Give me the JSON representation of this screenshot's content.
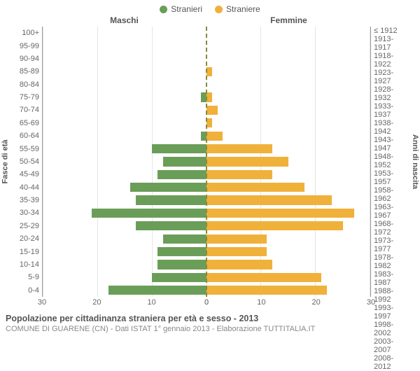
{
  "type": "population-pyramid",
  "legend": [
    {
      "label": "Stranieri",
      "color": "#6a9e58"
    },
    {
      "label": "Straniere",
      "color": "#f0b13b"
    }
  ],
  "headers": {
    "male": "Maschi",
    "female": "Femmine"
  },
  "y_axis_left": {
    "title": "Fasce di età"
  },
  "y_axis_right": {
    "title": "Anni di nascita"
  },
  "x_axis": {
    "max": 30,
    "ticks": [
      30,
      20,
      10,
      0,
      10,
      20,
      30
    ]
  },
  "rows": [
    {
      "age": "100+",
      "birth": "≤ 1912",
      "m": 0,
      "f": 0
    },
    {
      "age": "95-99",
      "birth": "1913-1917",
      "m": 0,
      "f": 0
    },
    {
      "age": "90-94",
      "birth": "1918-1922",
      "m": 0,
      "f": 0
    },
    {
      "age": "85-89",
      "birth": "1923-1927",
      "m": 0,
      "f": 1
    },
    {
      "age": "80-84",
      "birth": "1928-1932",
      "m": 0,
      "f": 0
    },
    {
      "age": "75-79",
      "birth": "1933-1937",
      "m": 1,
      "f": 1
    },
    {
      "age": "70-74",
      "birth": "1938-1942",
      "m": 0,
      "f": 2
    },
    {
      "age": "65-69",
      "birth": "1943-1947",
      "m": 0,
      "f": 1
    },
    {
      "age": "60-64",
      "birth": "1948-1952",
      "m": 1,
      "f": 3
    },
    {
      "age": "55-59",
      "birth": "1953-1957",
      "m": 10,
      "f": 12
    },
    {
      "age": "50-54",
      "birth": "1958-1962",
      "m": 8,
      "f": 15
    },
    {
      "age": "45-49",
      "birth": "1963-1967",
      "m": 9,
      "f": 12
    },
    {
      "age": "40-44",
      "birth": "1968-1972",
      "m": 14,
      "f": 18
    },
    {
      "age": "35-39",
      "birth": "1973-1977",
      "m": 13,
      "f": 23
    },
    {
      "age": "30-34",
      "birth": "1978-1982",
      "m": 21,
      "f": 27
    },
    {
      "age": "25-29",
      "birth": "1983-1987",
      "m": 13,
      "f": 25
    },
    {
      "age": "20-24",
      "birth": "1988-1992",
      "m": 8,
      "f": 11
    },
    {
      "age": "15-19",
      "birth": "1993-1997",
      "m": 9,
      "f": 11
    },
    {
      "age": "10-14",
      "birth": "1998-2002",
      "m": 9,
      "f": 12
    },
    {
      "age": "5-9",
      "birth": "2003-2007",
      "m": 10,
      "f": 21
    },
    {
      "age": "0-4",
      "birth": "2008-2012",
      "m": 18,
      "f": 22
    }
  ],
  "colors": {
    "male_bar": "#6a9e58",
    "female_bar": "#f0b13b",
    "grid": "#e4e4e4",
    "centerline": "#8a8a3a",
    "background": "#ffffff",
    "text": "#555555",
    "text_muted": "#888888"
  },
  "typography": {
    "legend_fontsize": 12,
    "header_fontsize": 12,
    "tick_fontsize": 11,
    "axis_title_fontsize": 11,
    "caption_title_fontsize": 12.5,
    "caption_sub_fontsize": 11
  },
  "caption": {
    "title": "Popolazione per cittadinanza straniera per età e sesso - 2013",
    "subtitle": "COMUNE DI GUARENE (CN) - Dati ISTAT 1° gennaio 2013 - Elaborazione TUTTITALIA.IT"
  }
}
